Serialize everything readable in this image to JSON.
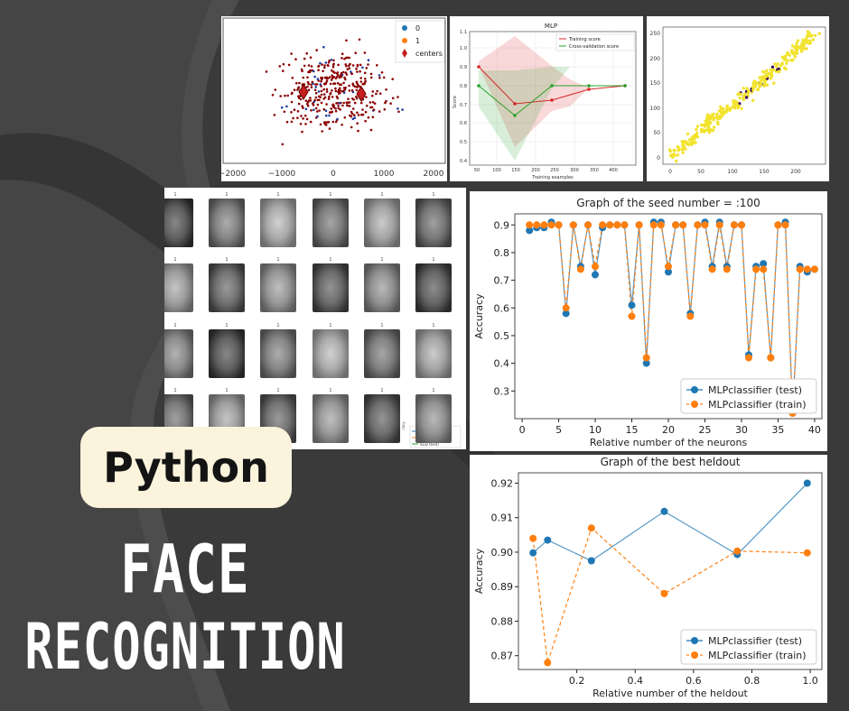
{
  "poster": {
    "tag": "Python",
    "title_line1": "FACE",
    "title_line2": "RECOGNITION"
  },
  "colors": {
    "background": "#3a3a3a",
    "swirl": "#4d4d4d",
    "pill": "#fbf3dc",
    "blue": "#1f77b4",
    "orange": "#ff7f0e",
    "red": "#d62728",
    "green": "#2ca02c",
    "yellow": "#f2e32e",
    "purple": "#3d0a5c",
    "darkred": "#8b0000"
  },
  "scatter_panel": {
    "legend": [
      "0",
      "1",
      "centers"
    ],
    "x_ticks": [
      "−2000",
      "−1000",
      "0",
      "1000",
      "2000"
    ]
  },
  "mlp_panel": {
    "title": "MLP",
    "legend": [
      "Training score",
      "Cross-validation score"
    ],
    "xlabel": "Training examples",
    "ylabel": "Score",
    "x_ticks": [
      "50",
      "100",
      "150",
      "200",
      "250",
      "300",
      "350",
      "400"
    ],
    "y_ticks": [
      "0.4",
      "0.5",
      "0.6",
      "0.7",
      "0.8",
      "0.9",
      "1.0",
      "1.1"
    ]
  },
  "reg_panel": {
    "x_ticks": [
      "0",
      "50",
      "100",
      "150",
      "200"
    ],
    "y_ticks": [
      "0",
      "50",
      "100",
      "150",
      "200",
      "250"
    ]
  },
  "faces_panel": {
    "face_label": "1",
    "legend": [
      "SGDp (test)",
      "Perceptron (test)",
      "SGD (test)"
    ],
    "ylabel": "racy"
  },
  "chart_data": [
    {
      "type": "line",
      "title": "Graph of the seed number = :100",
      "xlabel": "Relative number of the neurons",
      "ylabel": "Accuracy",
      "xlim": [
        -1,
        41
      ],
      "ylim": [
        0.2,
        0.94
      ],
      "x_ticks": [
        0,
        5,
        10,
        15,
        20,
        25,
        30,
        35,
        40
      ],
      "y_ticks": [
        0.3,
        0.4,
        0.5,
        0.6,
        0.7,
        0.8,
        0.9
      ],
      "legend_position": "lower-right",
      "x": [
        1,
        2,
        3,
        4,
        5,
        6,
        7,
        8,
        9,
        10,
        11,
        12,
        13,
        14,
        15,
        16,
        17,
        18,
        19,
        20,
        21,
        22,
        23,
        24,
        25,
        26,
        27,
        28,
        29,
        30,
        31,
        32,
        33,
        34,
        35,
        36,
        37,
        38,
        39,
        40
      ],
      "series": [
        {
          "name": "MLPclassifier (test)",
          "style": "solid",
          "values": [
            0.88,
            0.89,
            0.89,
            0.91,
            0.9,
            0.58,
            0.9,
            0.75,
            0.9,
            0.72,
            0.89,
            0.9,
            0.9,
            0.9,
            0.61,
            0.9,
            0.4,
            0.91,
            0.91,
            0.73,
            0.9,
            0.9,
            0.58,
            0.9,
            0.91,
            0.75,
            0.91,
            0.75,
            0.9,
            0.9,
            0.43,
            0.75,
            0.76,
            0.42,
            0.9,
            0.91,
            0.22,
            0.75,
            0.73,
            0.74
          ]
        },
        {
          "name": "MLPclassifier (train)",
          "style": "dashed",
          "values": [
            0.9,
            0.9,
            0.9,
            0.9,
            0.9,
            0.6,
            0.9,
            0.74,
            0.9,
            0.75,
            0.9,
            0.9,
            0.9,
            0.9,
            0.57,
            0.9,
            0.42,
            0.9,
            0.9,
            0.75,
            0.9,
            0.9,
            0.57,
            0.9,
            0.9,
            0.74,
            0.9,
            0.74,
            0.9,
            0.9,
            0.42,
            0.74,
            0.74,
            0.42,
            0.9,
            0.9,
            0.22,
            0.74,
            0.74,
            0.74
          ]
        }
      ]
    },
    {
      "type": "line",
      "title": "Graph of the best heldout",
      "xlabel": "Relative number of the heldout",
      "ylabel": "Accuracy",
      "xlim": [
        0.0,
        1.04
      ],
      "ylim": [
        0.866,
        0.923
      ],
      "x_ticks": [
        0.2,
        0.4,
        0.6,
        0.8,
        1.0
      ],
      "y_ticks": [
        0.87,
        0.88,
        0.89,
        0.9,
        0.91,
        0.92
      ],
      "legend_position": "lower-right",
      "x": [
        0.05,
        0.1,
        0.25,
        0.5,
        0.75,
        0.99
      ],
      "series": [
        {
          "name": "MLPclassifier (test)",
          "style": "solid",
          "values": [
            0.8998,
            0.9035,
            0.8975,
            0.9118,
            0.8993,
            0.92
          ]
        },
        {
          "name": "MLPclassifier (train)",
          "style": "dashed",
          "values": [
            0.904,
            0.868,
            0.907,
            0.888,
            0.9003,
            0.8998
          ]
        }
      ]
    }
  ]
}
